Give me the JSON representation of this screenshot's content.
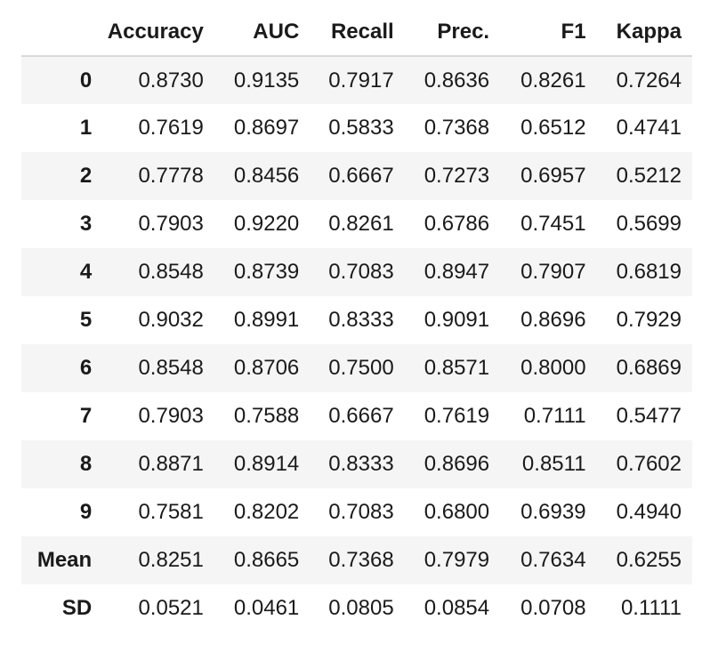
{
  "table": {
    "columns": [
      "",
      "Accuracy",
      "AUC",
      "Recall",
      "Prec.",
      "F1",
      "Kappa"
    ],
    "rows": [
      {
        "index": "0",
        "values": [
          "0.8730",
          "0.9135",
          "0.7917",
          "0.8636",
          "0.8261",
          "0.7264"
        ]
      },
      {
        "index": "1",
        "values": [
          "0.7619",
          "0.8697",
          "0.5833",
          "0.7368",
          "0.6512",
          "0.4741"
        ]
      },
      {
        "index": "2",
        "values": [
          "0.7778",
          "0.8456",
          "0.6667",
          "0.7273",
          "0.6957",
          "0.5212"
        ]
      },
      {
        "index": "3",
        "values": [
          "0.7903",
          "0.9220",
          "0.8261",
          "0.6786",
          "0.7451",
          "0.5699"
        ]
      },
      {
        "index": "4",
        "values": [
          "0.8548",
          "0.8739",
          "0.7083",
          "0.8947",
          "0.7907",
          "0.6819"
        ]
      },
      {
        "index": "5",
        "values": [
          "0.9032",
          "0.8991",
          "0.8333",
          "0.9091",
          "0.8696",
          "0.7929"
        ]
      },
      {
        "index": "6",
        "values": [
          "0.8548",
          "0.8706",
          "0.7500",
          "0.8571",
          "0.8000",
          "0.6869"
        ]
      },
      {
        "index": "7",
        "values": [
          "0.7903",
          "0.7588",
          "0.6667",
          "0.7619",
          "0.7111",
          "0.5477"
        ]
      },
      {
        "index": "8",
        "values": [
          "0.8871",
          "0.8914",
          "0.8333",
          "0.8696",
          "0.8511",
          "0.7602"
        ]
      },
      {
        "index": "9",
        "values": [
          "0.7581",
          "0.8202",
          "0.7083",
          "0.6800",
          "0.6939",
          "0.4940"
        ]
      },
      {
        "index": "Mean",
        "values": [
          "0.8251",
          "0.8665",
          "0.7368",
          "0.7979",
          "0.7634",
          "0.6255"
        ]
      },
      {
        "index": "SD",
        "values": [
          "0.0521",
          "0.0461",
          "0.0805",
          "0.0854",
          "0.0708",
          "0.1111"
        ]
      }
    ]
  }
}
